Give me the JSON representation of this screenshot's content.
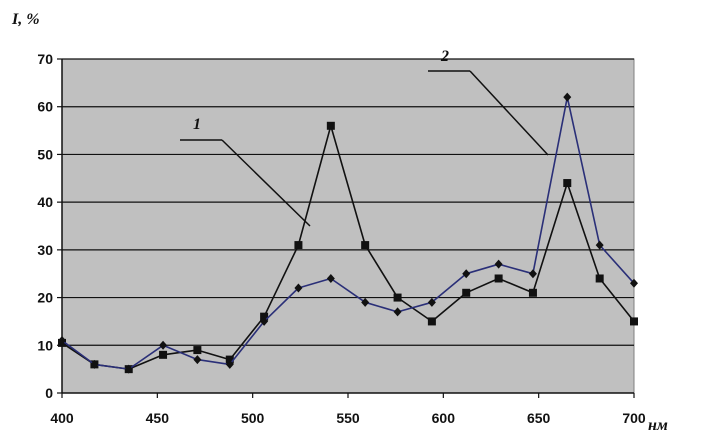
{
  "chart_data": {
    "type": "line",
    "ylabel": "I, %",
    "xlabel": "нм",
    "xlim": [
      400,
      700
    ],
    "ylim": [
      0,
      70
    ],
    "xticks": [
      400,
      450,
      500,
      550,
      600,
      650,
      700
    ],
    "yticks": [
      0,
      10,
      20,
      30,
      40,
      50,
      60,
      70
    ],
    "grid": "horizontal",
    "background_color": "#c0c0c0",
    "series": [
      {
        "name": "1",
        "marker": "square",
        "color": "#111111",
        "x": [
          400,
          417,
          435,
          453,
          471,
          488,
          506,
          524,
          541,
          559,
          576,
          594,
          612,
          629,
          647,
          665,
          682,
          700
        ],
        "y": [
          10.5,
          6,
          5,
          8,
          9,
          7,
          16,
          31,
          56,
          31,
          20,
          15,
          21,
          24,
          21,
          44,
          24,
          15
        ]
      },
      {
        "name": "2",
        "marker": "diamond",
        "color": "#2a2f78",
        "x": [
          400,
          417,
          435,
          453,
          471,
          488,
          506,
          524,
          541,
          559,
          576,
          594,
          612,
          629,
          647,
          665,
          682,
          700
        ],
        "y": [
          11,
          6,
          5,
          10,
          7,
          6,
          15,
          22,
          24,
          19,
          17,
          19,
          25,
          27,
          25,
          62,
          31,
          23
        ]
      }
    ]
  }
}
